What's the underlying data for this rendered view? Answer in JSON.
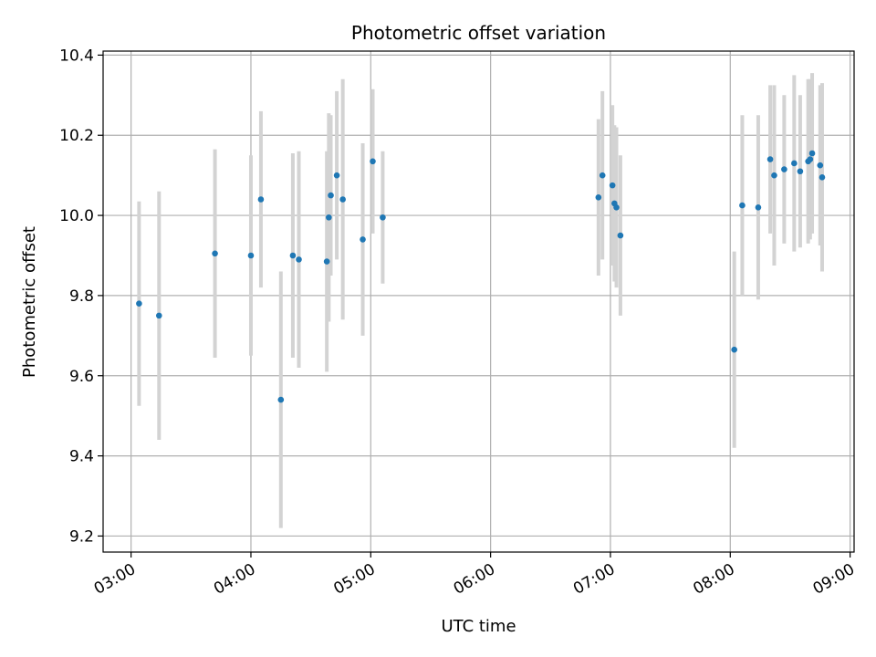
{
  "chart_data": {
    "type": "scatter",
    "title": "Photometric offset variation",
    "xlabel": "UTC time",
    "ylabel": "Photometric offset",
    "x_ticks": [
      "03:00",
      "04:00",
      "05:00",
      "06:00",
      "07:00",
      "08:00",
      "09:00"
    ],
    "y_ticks": [
      "9.2",
      "9.4",
      "9.6",
      "9.8",
      "10.0",
      "10.2",
      "10.4"
    ],
    "xlim": [
      "02:46",
      "09:02"
    ],
    "ylim": [
      9.16,
      10.41
    ],
    "grid": true,
    "colors": {
      "points": "#1f77b4",
      "errorbars": "#d3d3d3",
      "grid": "#b0b0b0"
    },
    "series": [
      {
        "points": [
          {
            "x": "03:04",
            "y": 9.78,
            "err": 0.255
          },
          {
            "x": "03:14",
            "y": 9.75,
            "err": 0.31
          },
          {
            "x": "03:42",
            "y": 9.905,
            "err": 0.26
          },
          {
            "x": "04:00",
            "y": 9.9,
            "err": 0.25
          },
          {
            "x": "04:05",
            "y": 10.04,
            "err": 0.22
          },
          {
            "x": "04:15",
            "y": 9.54,
            "err": 0.32
          },
          {
            "x": "04:21",
            "y": 9.9,
            "err": 0.255
          },
          {
            "x": "04:24",
            "y": 9.89,
            "err": 0.27
          },
          {
            "x": "04:38",
            "y": 9.885,
            "err": 0.275
          },
          {
            "x": "04:39",
            "y": 9.995,
            "err": 0.26
          },
          {
            "x": "04:40",
            "y": 10.05,
            "err": 0.2
          },
          {
            "x": "04:43",
            "y": 10.1,
            "err": 0.21
          },
          {
            "x": "04:46",
            "y": 10.04,
            "err": 0.3
          },
          {
            "x": "04:56",
            "y": 9.94,
            "err": 0.24
          },
          {
            "x": "05:01",
            "y": 10.135,
            "err": 0.18
          },
          {
            "x": "05:06",
            "y": 9.995,
            "err": 0.165
          },
          {
            "x": "06:54",
            "y": 10.045,
            "err": 0.195
          },
          {
            "x": "06:56",
            "y": 10.1,
            "err": 0.21
          },
          {
            "x": "07:01",
            "y": 10.075,
            "err": 0.2
          },
          {
            "x": "07:02",
            "y": 10.03,
            "err": 0.195
          },
          {
            "x": "07:03",
            "y": 10.02,
            "err": 0.2
          },
          {
            "x": "07:05",
            "y": 9.95,
            "err": 0.2
          },
          {
            "x": "08:02",
            "y": 9.665,
            "err": 0.245
          },
          {
            "x": "08:06",
            "y": 10.025,
            "err": 0.225
          },
          {
            "x": "08:14",
            "y": 10.02,
            "err": 0.23
          },
          {
            "x": "08:20",
            "y": 10.14,
            "err": 0.185
          },
          {
            "x": "08:22",
            "y": 10.1,
            "err": 0.225
          },
          {
            "x": "08:27",
            "y": 10.115,
            "err": 0.185
          },
          {
            "x": "08:32",
            "y": 10.13,
            "err": 0.22
          },
          {
            "x": "08:35",
            "y": 10.11,
            "err": 0.19
          },
          {
            "x": "08:39",
            "y": 10.135,
            "err": 0.205
          },
          {
            "x": "08:40",
            "y": 10.14,
            "err": 0.2
          },
          {
            "x": "08:41",
            "y": 10.155,
            "err": 0.2
          },
          {
            "x": "08:45",
            "y": 10.125,
            "err": 0.2
          },
          {
            "x": "08:46",
            "y": 10.095,
            "err": 0.235
          }
        ]
      }
    ]
  }
}
